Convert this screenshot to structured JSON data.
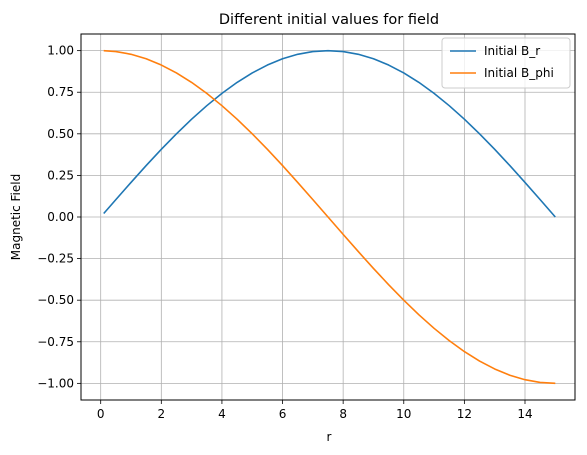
{
  "chart_data": {
    "type": "line",
    "title": "Different initial values for field",
    "xlabel": "r",
    "ylabel": "Magnetic Field",
    "xlim": [
      -0.65,
      15.65
    ],
    "ylim": [
      -1.1,
      1.1
    ],
    "xticks": [
      0,
      2,
      4,
      6,
      8,
      10,
      12,
      14
    ],
    "yticks": [
      -1.0,
      -0.75,
      -0.5,
      -0.25,
      0.0,
      0.25,
      0.5,
      0.75,
      1.0
    ],
    "xtick_labels": [
      "0",
      "2",
      "4",
      "6",
      "8",
      "10",
      "12",
      "14"
    ],
    "ytick_labels": [
      "−1.00",
      "−0.75",
      "−0.50",
      "−0.25",
      "0.00",
      "0.25",
      "0.50",
      "0.75",
      "1.00"
    ],
    "grid": true,
    "legend_position": "top-right",
    "x": [
      0.1,
      0.5,
      1.0,
      1.5,
      2.0,
      2.5,
      3.0,
      3.5,
      4.0,
      4.5,
      5.0,
      5.5,
      6.0,
      6.5,
      7.0,
      7.5,
      8.0,
      8.5,
      9.0,
      9.5,
      10.0,
      10.5,
      11.0,
      11.5,
      12.0,
      12.5,
      13.0,
      13.5,
      14.0,
      14.5,
      15.0
    ],
    "series": [
      {
        "name": "Initial B_r",
        "color": "#1f77b4",
        "values": [
          0.0209,
          0.1045,
          0.2079,
          0.309,
          0.4067,
          0.5,
          0.5878,
          0.6691,
          0.7431,
          0.809,
          0.866,
          0.9135,
          0.9511,
          0.9781,
          0.9945,
          1.0,
          0.9945,
          0.9781,
          0.9511,
          0.9135,
          0.866,
          0.809,
          0.7431,
          0.6691,
          0.5878,
          0.5,
          0.4067,
          0.309,
          0.2079,
          0.1045,
          0.0
        ]
      },
      {
        "name": "Initial B_phi",
        "color": "#ff7f0e",
        "values": [
          0.9998,
          0.9945,
          0.9781,
          0.9511,
          0.9135,
          0.866,
          0.809,
          0.7431,
          0.6691,
          0.5878,
          0.5,
          0.4067,
          0.309,
          0.2079,
          0.1045,
          0.0,
          -0.1045,
          -0.2079,
          -0.309,
          -0.4067,
          -0.5,
          -0.5878,
          -0.6691,
          -0.7431,
          -0.809,
          -0.866,
          -0.9135,
          -0.9511,
          -0.9781,
          -0.9945,
          -1.0
        ]
      }
    ]
  }
}
